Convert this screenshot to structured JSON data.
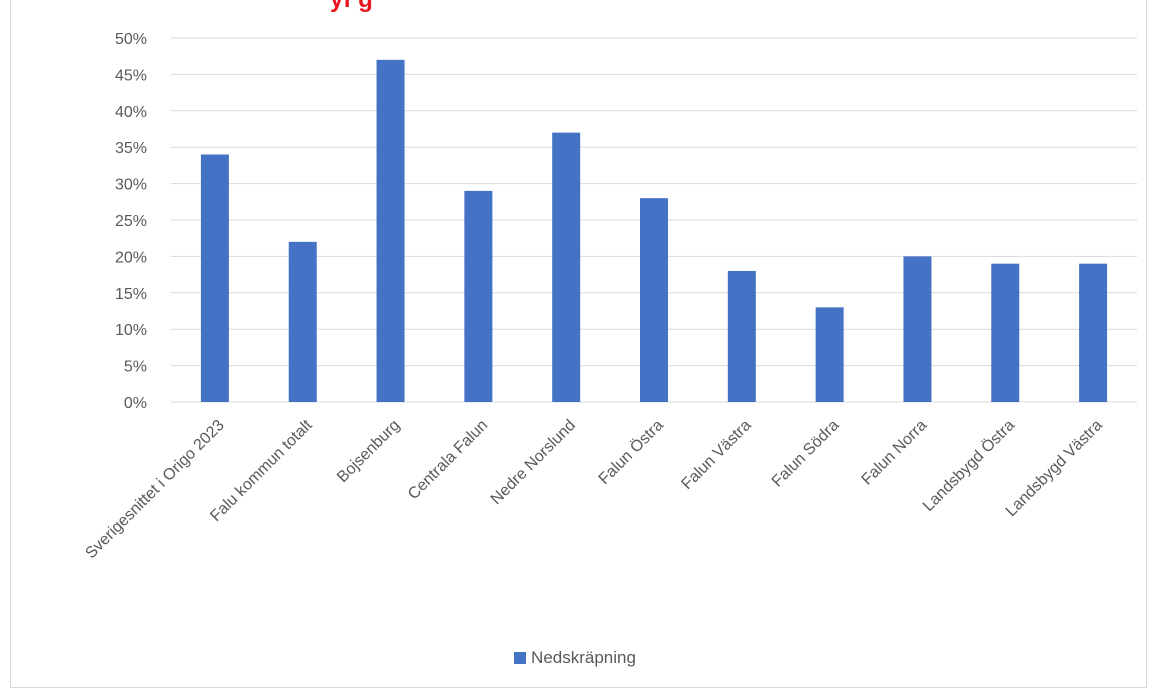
{
  "chart_data": {
    "type": "bar",
    "title_fragment": "yi g",
    "categories": [
      "Sverigesnittet i Origo 2023",
      "Falu kommun totalt",
      "Bojsenburg",
      "Centrala Falun",
      "Nedre Norslund",
      "Falun Östra",
      "Falun Västra",
      "Falun Södra",
      "Falun Norra",
      "Landsbygd Östra",
      "Landsbygd Västra"
    ],
    "series": [
      {
        "name": "Nedskräpning",
        "values": [
          34,
          22,
          47,
          29,
          37,
          28,
          18,
          13,
          20,
          19,
          19
        ]
      }
    ],
    "ylim": [
      0,
      50
    ],
    "yticks": [
      0,
      5,
      10,
      15,
      20,
      25,
      30,
      35,
      40,
      45,
      50
    ],
    "ytick_labels": [
      "0%",
      "5%",
      "10%",
      "15%",
      "20%",
      "25%",
      "30%",
      "35%",
      "40%",
      "45%",
      "50%"
    ],
    "grid": true,
    "legend_position": "bottom",
    "colors": {
      "bar": "#4472c4",
      "grid": "#d9d9d9",
      "title": "#e8131f"
    }
  }
}
